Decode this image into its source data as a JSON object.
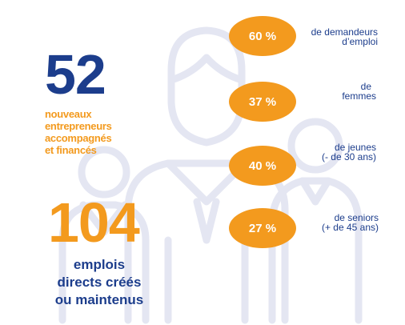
{
  "colors": {
    "navy": "#1c3d8c",
    "orange": "#f39a1e",
    "illustration": "#e4e6f2"
  },
  "background": {
    "icon": "people-group-outline-icon"
  },
  "left": {
    "stat1": {
      "value": "52",
      "lines": [
        "nouveaux",
        "entrepreneurs",
        "accompagnés",
        "et financés"
      ]
    },
    "stat2": {
      "value": "104",
      "lines": [
        "emplois",
        "directs créés",
        "ou maintenus"
      ]
    }
  },
  "right": {
    "items": [
      {
        "percent": "60 %",
        "lines": [
          "de demandeurs",
          "d’emploi"
        ]
      },
      {
        "percent": "37 %",
        "lines": [
          "de",
          "femmes"
        ]
      },
      {
        "percent": "40 %",
        "lines": [
          "de jeunes",
          "(- de 30 ans)"
        ]
      },
      {
        "percent": "27 %",
        "lines": [
          "de seniors",
          "(+ de 45 ans)"
        ]
      }
    ]
  }
}
